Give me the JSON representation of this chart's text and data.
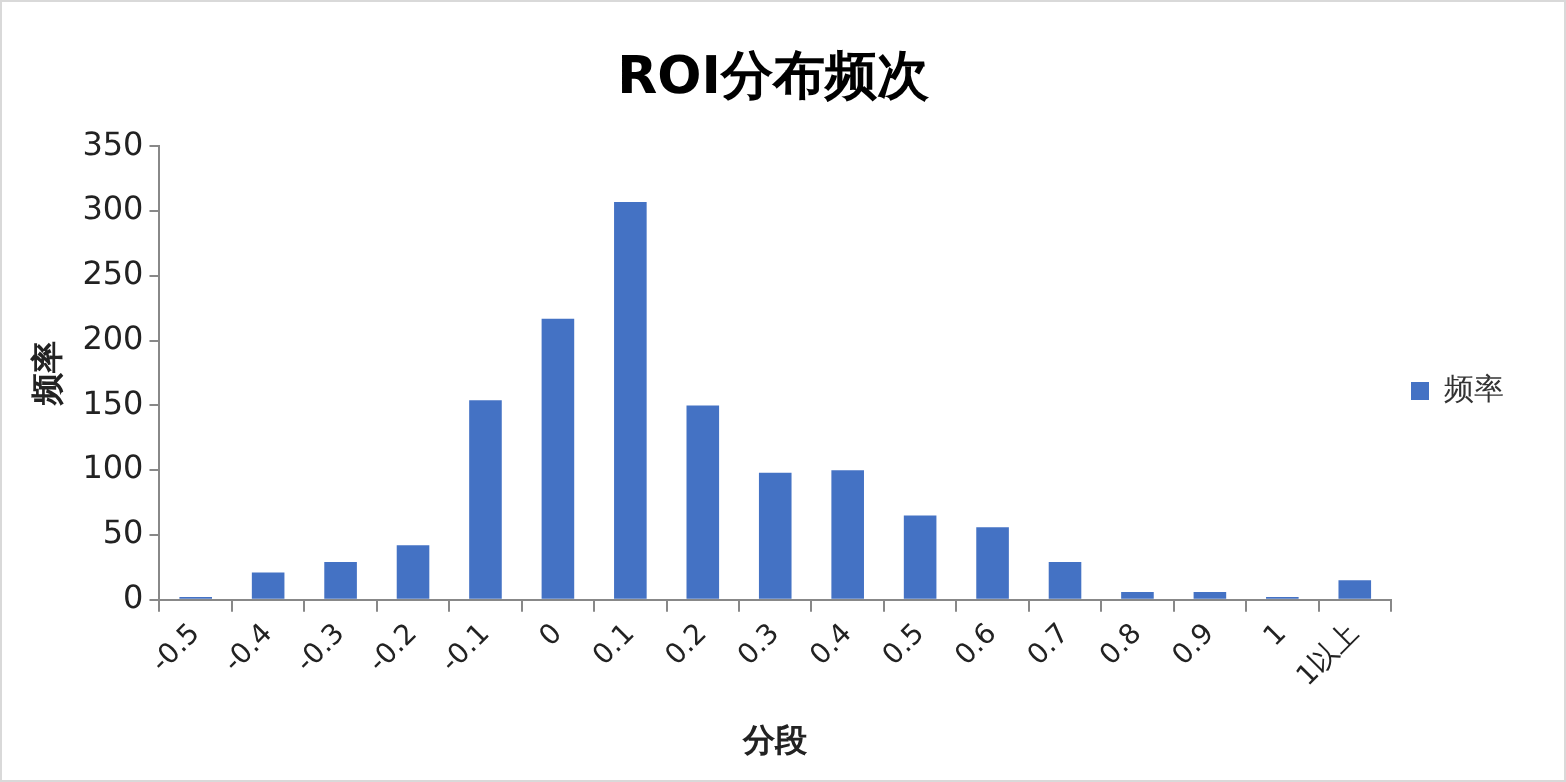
{
  "chart_data": {
    "type": "bar",
    "title": "ROI分布频次",
    "xlabel": "分段",
    "ylabel": "频率",
    "categories": [
      "-0.5",
      "-0.4",
      "-0.3",
      "-0.2",
      "-0.1",
      "0",
      "0.1",
      "0.2",
      "0.3",
      "0.4",
      "0.5",
      "0.6",
      "0.7",
      "0.8",
      "0.9",
      "1",
      "1以上"
    ],
    "series": [
      {
        "name": "频率",
        "color": "#4472c4",
        "values": [
          2,
          21,
          29,
          42,
          154,
          217,
          307,
          150,
          98,
          100,
          65,
          56,
          29,
          6,
          6,
          2,
          15
        ]
      }
    ],
    "ylim": [
      0,
      350
    ],
    "yticks": [
      0,
      50,
      100,
      150,
      200,
      250,
      300,
      350
    ],
    "grid": false,
    "legend": "right"
  }
}
